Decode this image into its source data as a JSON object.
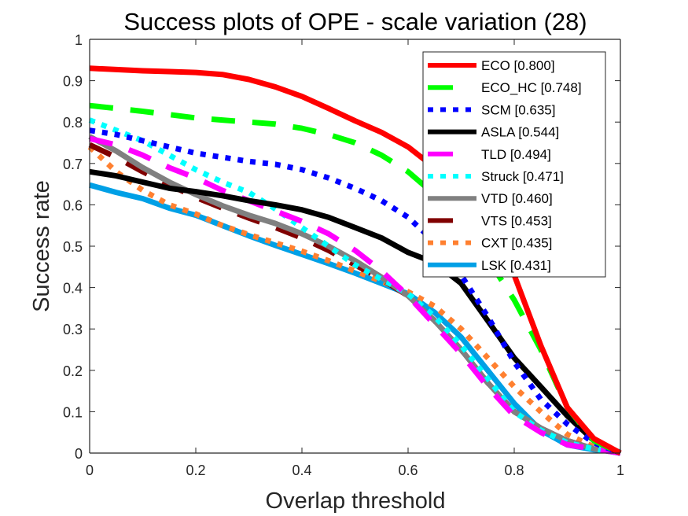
{
  "chart_data": {
    "type": "line",
    "title": "Success plots of OPE - scale variation (28)",
    "xlabel": "Overlap threshold",
    "ylabel": "Success rate",
    "xlim": [
      0,
      1
    ],
    "ylim": [
      0,
      1
    ],
    "xticks": [
      0,
      0.2,
      0.4,
      0.6,
      0.8,
      1
    ],
    "xtick_labels": [
      "0",
      "0.2",
      "0.4",
      "0.6",
      "0.8",
      "1"
    ],
    "yticks": [
      0,
      0.1,
      0.2,
      0.3,
      0.4,
      0.5,
      0.6,
      0.7,
      0.8,
      0.9,
      1
    ],
    "ytick_labels": [
      "0",
      "0.1",
      "0.2",
      "0.3",
      "0.4",
      "0.5",
      "0.6",
      "0.7",
      "0.8",
      "0.9",
      "1"
    ],
    "grid": false,
    "legend_position": "top-right",
    "x": [
      0,
      0.05,
      0.1,
      0.15,
      0.2,
      0.25,
      0.3,
      0.35,
      0.4,
      0.45,
      0.5,
      0.55,
      0.6,
      0.65,
      0.7,
      0.75,
      0.8,
      0.85,
      0.9,
      0.95,
      1
    ],
    "series": [
      {
        "name": "ECO",
        "label": "ECO [0.800]",
        "auc": 0.8,
        "color": "#ff0000",
        "style": "solid",
        "values": [
          0.93,
          0.927,
          0.924,
          0.922,
          0.92,
          0.915,
          0.903,
          0.885,
          0.862,
          0.833,
          0.803,
          0.775,
          0.74,
          0.69,
          0.6,
          0.52,
          0.43,
          0.26,
          0.11,
          0.035,
          0.0
        ]
      },
      {
        "name": "ECO_HC",
        "label": "ECO_HC [0.748]",
        "auc": 0.748,
        "color": "#00ff00",
        "style": "dashed",
        "values": [
          0.84,
          0.833,
          0.826,
          0.818,
          0.81,
          0.805,
          0.8,
          0.795,
          0.785,
          0.77,
          0.75,
          0.72,
          0.68,
          0.625,
          0.55,
          0.47,
          0.37,
          0.25,
          0.11,
          0.03,
          0.0
        ]
      },
      {
        "name": "SCM",
        "label": "SCM [0.635]",
        "auc": 0.635,
        "color": "#0000ff",
        "style": "dotted",
        "values": [
          0.78,
          0.77,
          0.755,
          0.74,
          0.725,
          0.715,
          0.705,
          0.698,
          0.685,
          0.665,
          0.64,
          0.61,
          0.57,
          0.51,
          0.43,
          0.33,
          0.22,
          0.13,
          0.07,
          0.025,
          0.0
        ]
      },
      {
        "name": "ASLA",
        "label": "ASLA [0.544]",
        "auc": 0.544,
        "color": "#000000",
        "style": "solid",
        "values": [
          0.68,
          0.67,
          0.655,
          0.64,
          0.632,
          0.622,
          0.61,
          0.6,
          0.588,
          0.57,
          0.545,
          0.52,
          0.485,
          0.46,
          0.41,
          0.32,
          0.23,
          0.16,
          0.09,
          0.03,
          0.0
        ]
      },
      {
        "name": "TLD",
        "label": "TLD [0.494]",
        "auc": 0.494,
        "color": "#ff00ff",
        "style": "dashed",
        "values": [
          0.76,
          0.745,
          0.72,
          0.69,
          0.665,
          0.635,
          0.61,
          0.585,
          0.56,
          0.53,
          0.49,
          0.44,
          0.38,
          0.31,
          0.24,
          0.16,
          0.09,
          0.05,
          0.02,
          0.01,
          0.0
        ]
      },
      {
        "name": "Struck",
        "label": "Struck [0.471]",
        "auc": 0.471,
        "color": "#00ffff",
        "style": "dotted",
        "values": [
          0.805,
          0.78,
          0.755,
          0.72,
          0.685,
          0.655,
          0.63,
          0.59,
          0.545,
          0.5,
          0.455,
          0.42,
          0.385,
          0.33,
          0.26,
          0.18,
          0.1,
          0.055,
          0.025,
          0.01,
          0.0
        ]
      },
      {
        "name": "VTD",
        "label": "VTD [0.460]",
        "auc": 0.46,
        "color": "#808080",
        "style": "solid",
        "values": [
          0.765,
          0.73,
          0.69,
          0.655,
          0.625,
          0.598,
          0.575,
          0.555,
          0.53,
          0.5,
          0.465,
          0.425,
          0.38,
          0.32,
          0.25,
          0.17,
          0.1,
          0.06,
          0.03,
          0.01,
          0.0
        ]
      },
      {
        "name": "VTS",
        "label": "VTS [0.453]",
        "auc": 0.453,
        "color": "#800000",
        "style": "dashed",
        "values": [
          0.745,
          0.715,
          0.68,
          0.648,
          0.618,
          0.592,
          0.568,
          0.545,
          0.52,
          0.49,
          0.455,
          0.42,
          0.38,
          0.32,
          0.25,
          0.17,
          0.1,
          0.06,
          0.03,
          0.01,
          0.0
        ]
      },
      {
        "name": "CXT",
        "label": "CXT [0.435]",
        "auc": 0.435,
        "color": "#ff8030",
        "style": "dotted",
        "values": [
          0.74,
          0.68,
          0.635,
          0.6,
          0.578,
          0.55,
          0.528,
          0.508,
          0.488,
          0.465,
          0.44,
          0.415,
          0.39,
          0.355,
          0.3,
          0.23,
          0.16,
          0.1,
          0.045,
          0.015,
          0.0
        ]
      },
      {
        "name": "LSK",
        "label": "LSK [0.431]",
        "auc": 0.431,
        "color": "#00a0e6",
        "style": "solid",
        "values": [
          0.648,
          0.63,
          0.615,
          0.592,
          0.575,
          0.55,
          0.525,
          0.502,
          0.48,
          0.458,
          0.435,
          0.41,
          0.385,
          0.34,
          0.28,
          0.2,
          0.12,
          0.055,
          0.02,
          0.008,
          0.003
        ]
      }
    ]
  }
}
